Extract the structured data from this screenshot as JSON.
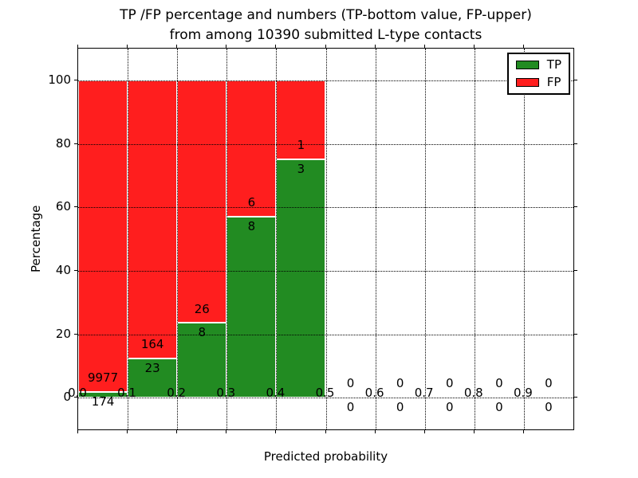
{
  "title": {
    "line1": "TP /FP percentage and numbers (TP-bottom value, FP-upper)",
    "line2": "from among 10390 submitted L-type contacts"
  },
  "axes": {
    "ylabel": "Percentage",
    "xlabel": "Predicted probability",
    "yticks": [
      0,
      20,
      40,
      60,
      80,
      100
    ],
    "xtick_labels": [
      "0.0",
      "0.1",
      "0.2",
      "0.3",
      "0.4",
      "0.5",
      "0.6",
      "0.7",
      "0.8",
      "0.9"
    ],
    "ylim": [
      -10,
      110
    ],
    "xlim": [
      0.0,
      1.0
    ],
    "grid": "dotted"
  },
  "colors": {
    "tp": "#228b22",
    "fp": "#ff1e1e",
    "bar_edge": "#ffffff",
    "grid": "#000000"
  },
  "chart_data": {
    "type": "bar",
    "stacked": true,
    "title": "TP /FP percentage and numbers (TP-bottom value, FP-upper) from among 10390 submitted L-type contacts",
    "xlabel": "Predicted probability",
    "ylabel": "Percentage",
    "xlim": [
      0.0,
      1.0
    ],
    "ylim": [
      -10,
      110
    ],
    "bin_width": 0.1,
    "total_contacts": 10390,
    "legend": [
      {
        "name": "TP",
        "color": "#228b22"
      },
      {
        "name": "FP",
        "color": "#ff1e1e"
      }
    ],
    "legend_position": "upper right",
    "bins": [
      {
        "range": "0.0-0.1",
        "x_start": 0.0,
        "tp_count": 174,
        "fp_count": 9977,
        "tp_pct": 1.71,
        "fp_pct": 98.29
      },
      {
        "range": "0.1-0.2",
        "x_start": 0.1,
        "tp_count": 23,
        "fp_count": 164,
        "tp_pct": 12.3,
        "fp_pct": 87.7
      },
      {
        "range": "0.2-0.3",
        "x_start": 0.2,
        "tp_count": 8,
        "fp_count": 26,
        "tp_pct": 23.53,
        "fp_pct": 76.47
      },
      {
        "range": "0.3-0.4",
        "x_start": 0.3,
        "tp_count": 8,
        "fp_count": 6,
        "tp_pct": 57.14,
        "fp_pct": 42.86
      },
      {
        "range": "0.4-0.5",
        "x_start": 0.4,
        "tp_count": 3,
        "fp_count": 1,
        "tp_pct": 75.0,
        "fp_pct": 25.0
      },
      {
        "range": "0.5-0.6",
        "x_start": 0.5,
        "tp_count": 0,
        "fp_count": 0,
        "tp_pct": 0,
        "fp_pct": 0
      },
      {
        "range": "0.6-0.7",
        "x_start": 0.6,
        "tp_count": 0,
        "fp_count": 0,
        "tp_pct": 0,
        "fp_pct": 0
      },
      {
        "range": "0.7-0.8",
        "x_start": 0.7,
        "tp_count": 0,
        "fp_count": 0,
        "tp_pct": 0,
        "fp_pct": 0
      },
      {
        "range": "0.8-0.9",
        "x_start": 0.8,
        "tp_count": 0,
        "fp_count": 0,
        "tp_pct": 0,
        "fp_pct": 0
      },
      {
        "range": "0.9-1.0",
        "x_start": 0.9,
        "tp_count": 0,
        "fp_count": 0,
        "tp_pct": 0,
        "fp_pct": 0
      }
    ]
  }
}
